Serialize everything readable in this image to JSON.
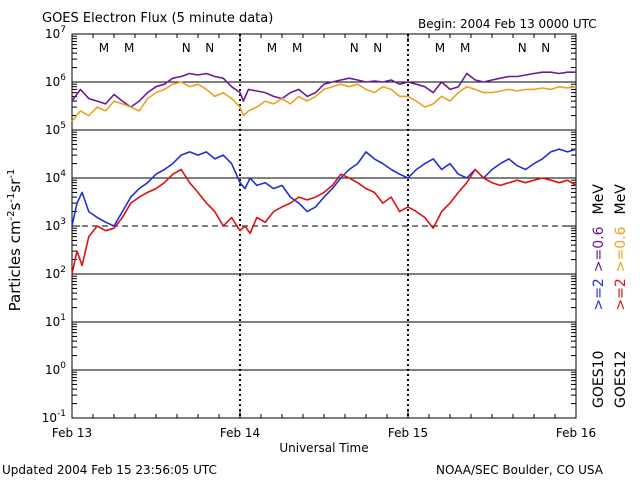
{
  "header": {
    "title": "GOES Electron Flux (5 minute data)",
    "begin": "Begin: 2004 Feb 13 0000 UTC"
  },
  "footer": {
    "updated": "Updated 2004 Feb 15 23:56:05 UTC",
    "credit": "NOAA/SEC Boulder, CO USA"
  },
  "side_labels": {
    "goes10": "GOES10",
    "goes12": "GOES12",
    "g10_gt2": ">=2",
    "g10_gt06": ">=0.6",
    "g10_mev": "MeV",
    "g12_gt2": ">=2",
    "g12_gt06": ">=0.6",
    "g12_mev": "MeV"
  },
  "colors": {
    "goes10_ge2": "#1f2fd6",
    "goes10_ge06": "#6a1a9a",
    "goes12_ge2": "#e01010",
    "goes12_ge06": "#f0a020",
    "marker_m": "#e01010",
    "marker_n": "#1f2fd6"
  },
  "chart_data": {
    "type": "line",
    "xlabel": "Universal Time",
    "ylabel_base": "Particles cm",
    "ylabel_sup1": "-2",
    "ylabel_mid1": "s",
    "ylabel_sup2": "-1",
    "ylabel_mid2": "sr",
    "ylabel_sup3": "-1",
    "x_ticks": [
      "Feb 13",
      "Feb 14",
      "Feb 15",
      "Feb 16"
    ],
    "y_scale": "log",
    "ylim": [
      0.1,
      10000000
    ],
    "y_ticks": [
      {
        "base": "10",
        "exp": "-1"
      },
      {
        "base": "10",
        "exp": "0"
      },
      {
        "base": "10",
        "exp": "1"
      },
      {
        "base": "10",
        "exp": "2"
      },
      {
        "base": "10",
        "exp": "3"
      },
      {
        "base": "10",
        "exp": "4"
      },
      {
        "base": "10",
        "exp": "5"
      },
      {
        "base": "10",
        "exp": "6"
      },
      {
        "base": "10",
        "exp": "7"
      }
    ],
    "threshold_lines": [
      1000
    ],
    "markers": [
      {
        "day": 0.19,
        "label": "M",
        "sat": "GOES12"
      },
      {
        "day": 0.34,
        "label": "M",
        "sat": "GOES12"
      },
      {
        "day": 0.68,
        "label": "N",
        "sat": "GOES10"
      },
      {
        "day": 0.82,
        "label": "N",
        "sat": "GOES10"
      },
      {
        "day": 1.19,
        "label": "M",
        "sat": "GOES12"
      },
      {
        "day": 1.34,
        "label": "M",
        "sat": "GOES12"
      },
      {
        "day": 1.68,
        "label": "N",
        "sat": "GOES10"
      },
      {
        "day": 1.82,
        "label": "N",
        "sat": "GOES10"
      },
      {
        "day": 2.19,
        "label": "M",
        "sat": "GOES12"
      },
      {
        "day": 2.34,
        "label": "M",
        "sat": "GOES12"
      },
      {
        "day": 2.68,
        "label": "N",
        "sat": "GOES10"
      },
      {
        "day": 2.82,
        "label": "N",
        "sat": "GOES10"
      }
    ],
    "series": [
      {
        "key": "goes10_ge06",
        "x": [
          0.0,
          0.05,
          0.1,
          0.15,
          0.2,
          0.25,
          0.3,
          0.35,
          0.4,
          0.45,
          0.5,
          0.55,
          0.6,
          0.65,
          0.7,
          0.75,
          0.8,
          0.85,
          0.9,
          0.95,
          1.0,
          1.02,
          1.05,
          1.1,
          1.15,
          1.2,
          1.25,
          1.3,
          1.35,
          1.4,
          1.45,
          1.5,
          1.55,
          1.6,
          1.65,
          1.7,
          1.75,
          1.8,
          1.85,
          1.9,
          1.95,
          2.0,
          2.05,
          2.1,
          2.15,
          2.2,
          2.25,
          2.3,
          2.35,
          2.4,
          2.45,
          2.5,
          2.55,
          2.6,
          2.65,
          2.7,
          2.75,
          2.8,
          2.85,
          2.9,
          2.95,
          3.0
        ],
        "y": [
          400000,
          700000,
          450000,
          400000,
          350000,
          550000,
          400000,
          300000,
          400000,
          600000,
          800000,
          900000,
          1200000,
          1300000,
          1500000,
          1400000,
          1500000,
          1300000,
          1200000,
          800000,
          600000,
          400000,
          700000,
          650000,
          600000,
          500000,
          450000,
          600000,
          700000,
          500000,
          600000,
          900000,
          1000000,
          1100000,
          1200000,
          1100000,
          1000000,
          1050000,
          1000000,
          1100000,
          900000,
          1000000,
          900000,
          800000,
          600000,
          1000000,
          700000,
          800000,
          1500000,
          1100000,
          1000000,
          1100000,
          1200000,
          1300000,
          1300000,
          1400000,
          1500000,
          1600000,
          1600000,
          1500000,
          1600000,
          1600000
        ]
      },
      {
        "key": "goes12_ge06",
        "x": [
          0.0,
          0.05,
          0.1,
          0.15,
          0.2,
          0.25,
          0.3,
          0.35,
          0.4,
          0.45,
          0.5,
          0.55,
          0.6,
          0.65,
          0.7,
          0.75,
          0.8,
          0.85,
          0.9,
          0.95,
          1.0,
          1.02,
          1.05,
          1.1,
          1.15,
          1.2,
          1.25,
          1.3,
          1.35,
          1.4,
          1.45,
          1.5,
          1.55,
          1.6,
          1.65,
          1.7,
          1.75,
          1.8,
          1.85,
          1.9,
          1.95,
          2.0,
          2.05,
          2.1,
          2.15,
          2.2,
          2.25,
          2.3,
          2.35,
          2.4,
          2.45,
          2.5,
          2.55,
          2.6,
          2.65,
          2.7,
          2.75,
          2.8,
          2.85,
          2.9,
          2.95,
          3.0
        ],
        "y": [
          150000,
          250000,
          200000,
          300000,
          250000,
          400000,
          350000,
          300000,
          250000,
          450000,
          600000,
          700000,
          900000,
          1000000,
          800000,
          900000,
          700000,
          500000,
          600000,
          450000,
          300000,
          200000,
          250000,
          300000,
          400000,
          350000,
          450000,
          350000,
          500000,
          400000,
          500000,
          700000,
          800000,
          900000,
          800000,
          900000,
          700000,
          600000,
          800000,
          700000,
          500000,
          500000,
          400000,
          300000,
          350000,
          500000,
          400000,
          600000,
          800000,
          700000,
          600000,
          600000,
          650000,
          700000,
          650000,
          700000,
          700000,
          750000,
          700000,
          800000,
          750000,
          800000
        ]
      },
      {
        "key": "goes10_ge2",
        "x": [
          0.0,
          0.03,
          0.06,
          0.1,
          0.15,
          0.2,
          0.25,
          0.3,
          0.35,
          0.4,
          0.45,
          0.5,
          0.55,
          0.6,
          0.65,
          0.7,
          0.75,
          0.8,
          0.85,
          0.9,
          0.95,
          1.0,
          1.03,
          1.06,
          1.1,
          1.15,
          1.2,
          1.25,
          1.3,
          1.35,
          1.4,
          1.45,
          1.5,
          1.55,
          1.6,
          1.65,
          1.7,
          1.75,
          1.8,
          1.85,
          1.9,
          1.95,
          2.0,
          2.05,
          2.1,
          2.15,
          2.2,
          2.25,
          2.3,
          2.35,
          2.4,
          2.45,
          2.5,
          2.55,
          2.6,
          2.65,
          2.7,
          2.75,
          2.8,
          2.85,
          2.9,
          2.95,
          3.0
        ],
        "y": [
          1000,
          3000,
          5000,
          2000,
          1500,
          1200,
          1000,
          2000,
          4000,
          6000,
          8000,
          12000,
          15000,
          20000,
          30000,
          35000,
          30000,
          35000,
          25000,
          30000,
          20000,
          8000,
          6000,
          10000,
          7000,
          8000,
          6000,
          7000,
          4000,
          3000,
          2000,
          2500,
          4000,
          6000,
          10000,
          15000,
          20000,
          35000,
          25000,
          20000,
          15000,
          12000,
          10000,
          15000,
          20000,
          25000,
          15000,
          20000,
          12000,
          10000,
          15000,
          10000,
          15000,
          20000,
          25000,
          18000,
          15000,
          20000,
          25000,
          35000,
          40000,
          35000,
          40000
        ]
      },
      {
        "key": "goes12_ge2",
        "x": [
          0.0,
          0.03,
          0.06,
          0.1,
          0.15,
          0.2,
          0.25,
          0.3,
          0.35,
          0.4,
          0.45,
          0.5,
          0.55,
          0.6,
          0.65,
          0.7,
          0.75,
          0.8,
          0.85,
          0.9,
          0.95,
          1.0,
          1.03,
          1.06,
          1.1,
          1.15,
          1.2,
          1.25,
          1.3,
          1.35,
          1.4,
          1.45,
          1.5,
          1.55,
          1.6,
          1.65,
          1.7,
          1.75,
          1.8,
          1.85,
          1.9,
          1.95,
          2.0,
          2.05,
          2.1,
          2.15,
          2.2,
          2.25,
          2.3,
          2.35,
          2.4,
          2.45,
          2.5,
          2.55,
          2.6,
          2.65,
          2.7,
          2.75,
          2.8,
          2.85,
          2.9,
          2.95,
          3.0
        ],
        "y": [
          100,
          300,
          150,
          600,
          1000,
          800,
          900,
          1500,
          3000,
          4000,
          5000,
          6000,
          8000,
          12000,
          15000,
          8000,
          5000,
          3000,
          2000,
          1000,
          1500,
          800,
          1000,
          700,
          1500,
          1200,
          2000,
          2500,
          3000,
          4000,
          3500,
          4000,
          5000,
          7000,
          12000,
          10000,
          8000,
          6000,
          5000,
          3000,
          4000,
          2000,
          2500,
          2000,
          1500,
          900,
          2000,
          3000,
          5000,
          8000,
          15000,
          10000,
          8000,
          7000,
          8000,
          9000,
          8000,
          9000,
          10000,
          9000,
          8000,
          9000,
          7000
        ]
      }
    ]
  }
}
